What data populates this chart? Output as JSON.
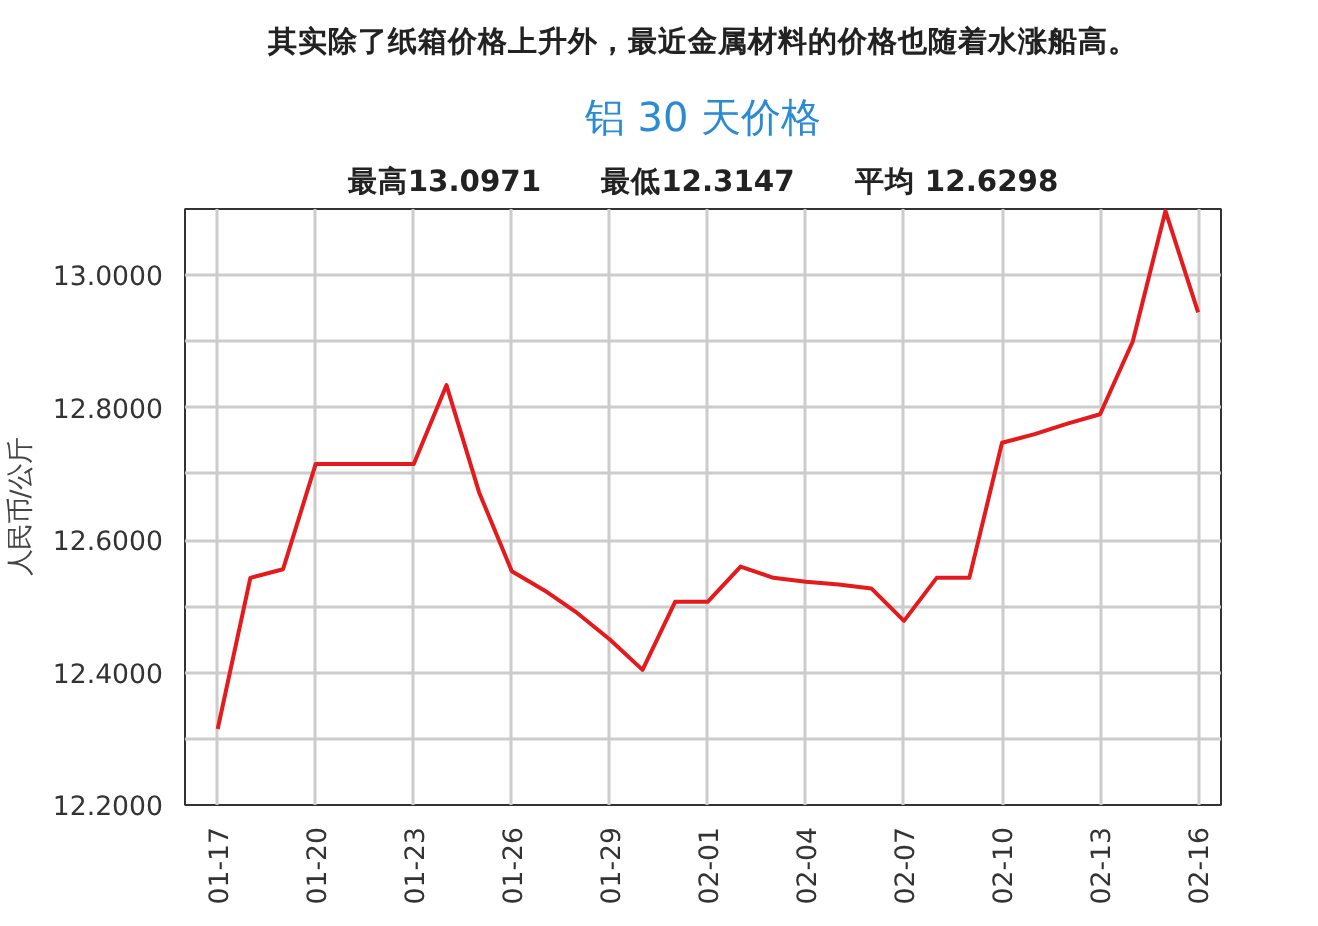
{
  "chart_data": {
    "type": "line",
    "title": "铝 30 天价格",
    "subtitle": "最高13.0971　　最低12.3147　　平均 12.6298",
    "ylabel": "人民币/公斤",
    "annotations": [
      "其实除了纸箱价格上升外，最近金属材料的价格也随着水涨船高。"
    ],
    "categories": [
      "01-17",
      null,
      null,
      "01-20",
      null,
      null,
      "01-23",
      null,
      null,
      "01-26",
      null,
      null,
      "01-29",
      null,
      null,
      "02-01",
      null,
      null,
      "02-04",
      null,
      null,
      "02-07",
      null,
      null,
      "02-10",
      null,
      null,
      "02-13",
      null,
      null,
      "02-16"
    ],
    "series": [
      {
        "color": "#e41a1c",
        "values": [
          12.3147,
          12.543,
          12.556,
          12.715,
          12.715,
          12.715,
          12.715,
          12.834,
          12.672,
          12.553,
          12.524,
          12.49,
          12.45,
          12.404,
          12.507,
          12.507,
          12.56,
          12.543,
          12.537,
          12.533,
          12.527,
          12.478,
          12.543,
          12.543,
          12.747,
          12.76,
          12.776,
          12.79,
          12.9,
          13.0971,
          12.944
        ]
      }
    ],
    "ylim": [
      12.2,
      13.1
    ],
    "yticks": [
      {
        "value": 12.2,
        "label": "12.2000"
      },
      {
        "value": 12.3,
        "label": null
      },
      {
        "value": 12.4,
        "label": "12.4000"
      },
      {
        "value": 12.5,
        "label": null
      },
      {
        "value": 12.6,
        "label": "12.6000"
      },
      {
        "value": 12.7,
        "label": null
      },
      {
        "value": 12.8,
        "label": "12.8000"
      },
      {
        "value": 12.9,
        "label": null
      },
      {
        "value": 13.0,
        "label": "13.0000"
      }
    ],
    "grid": true,
    "marker": "none",
    "line_style": "solid"
  }
}
